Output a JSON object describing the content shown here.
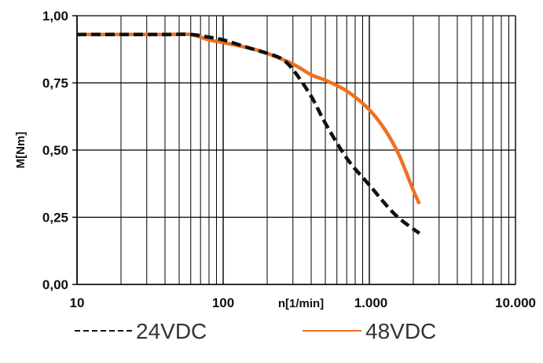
{
  "chart_data": {
    "type": "line",
    "title": "",
    "xlabel": "n[1/min]",
    "ylabel": "M[Nm]",
    "x_scale": "log",
    "xlim": [
      10,
      10000
    ],
    "ylim": [
      0,
      1
    ],
    "grid": true,
    "x_ticks": [
      {
        "value": 10,
        "label": "10"
      },
      {
        "value": 100,
        "label": "100"
      },
      {
        "value": 1000,
        "label": "1.000"
      },
      {
        "value": 10000,
        "label": "10.000"
      }
    ],
    "y_ticks": [
      {
        "value": 0,
        "label": "0,00"
      },
      {
        "value": 0.25,
        "label": "0,25"
      },
      {
        "value": 0.5,
        "label": "0,50"
      },
      {
        "value": 0.75,
        "label": "0,75"
      },
      {
        "value": 1.0,
        "label": "1,00"
      }
    ],
    "legend_position": "bottom",
    "series": [
      {
        "name": "24VDC",
        "color": "#111111",
        "style": "dashed",
        "x": [
          10,
          20,
          40,
          60,
          80,
          100,
          150,
          200,
          250,
          300,
          400,
          500,
          700,
          1000,
          1500,
          2200
        ],
        "y": [
          0.93,
          0.93,
          0.93,
          0.93,
          0.92,
          0.91,
          0.88,
          0.86,
          0.84,
          0.8,
          0.7,
          0.6,
          0.47,
          0.37,
          0.26,
          0.19
        ]
      },
      {
        "name": "48VDC",
        "color": "#f07020",
        "style": "solid",
        "x": [
          10,
          20,
          40,
          60,
          80,
          100,
          150,
          200,
          300,
          400,
          500,
          700,
          1000,
          1300,
          1600,
          2000,
          2200
        ],
        "y": [
          0.93,
          0.93,
          0.93,
          0.93,
          0.91,
          0.9,
          0.88,
          0.86,
          0.82,
          0.78,
          0.76,
          0.72,
          0.65,
          0.57,
          0.48,
          0.35,
          0.3
        ]
      }
    ]
  }
}
